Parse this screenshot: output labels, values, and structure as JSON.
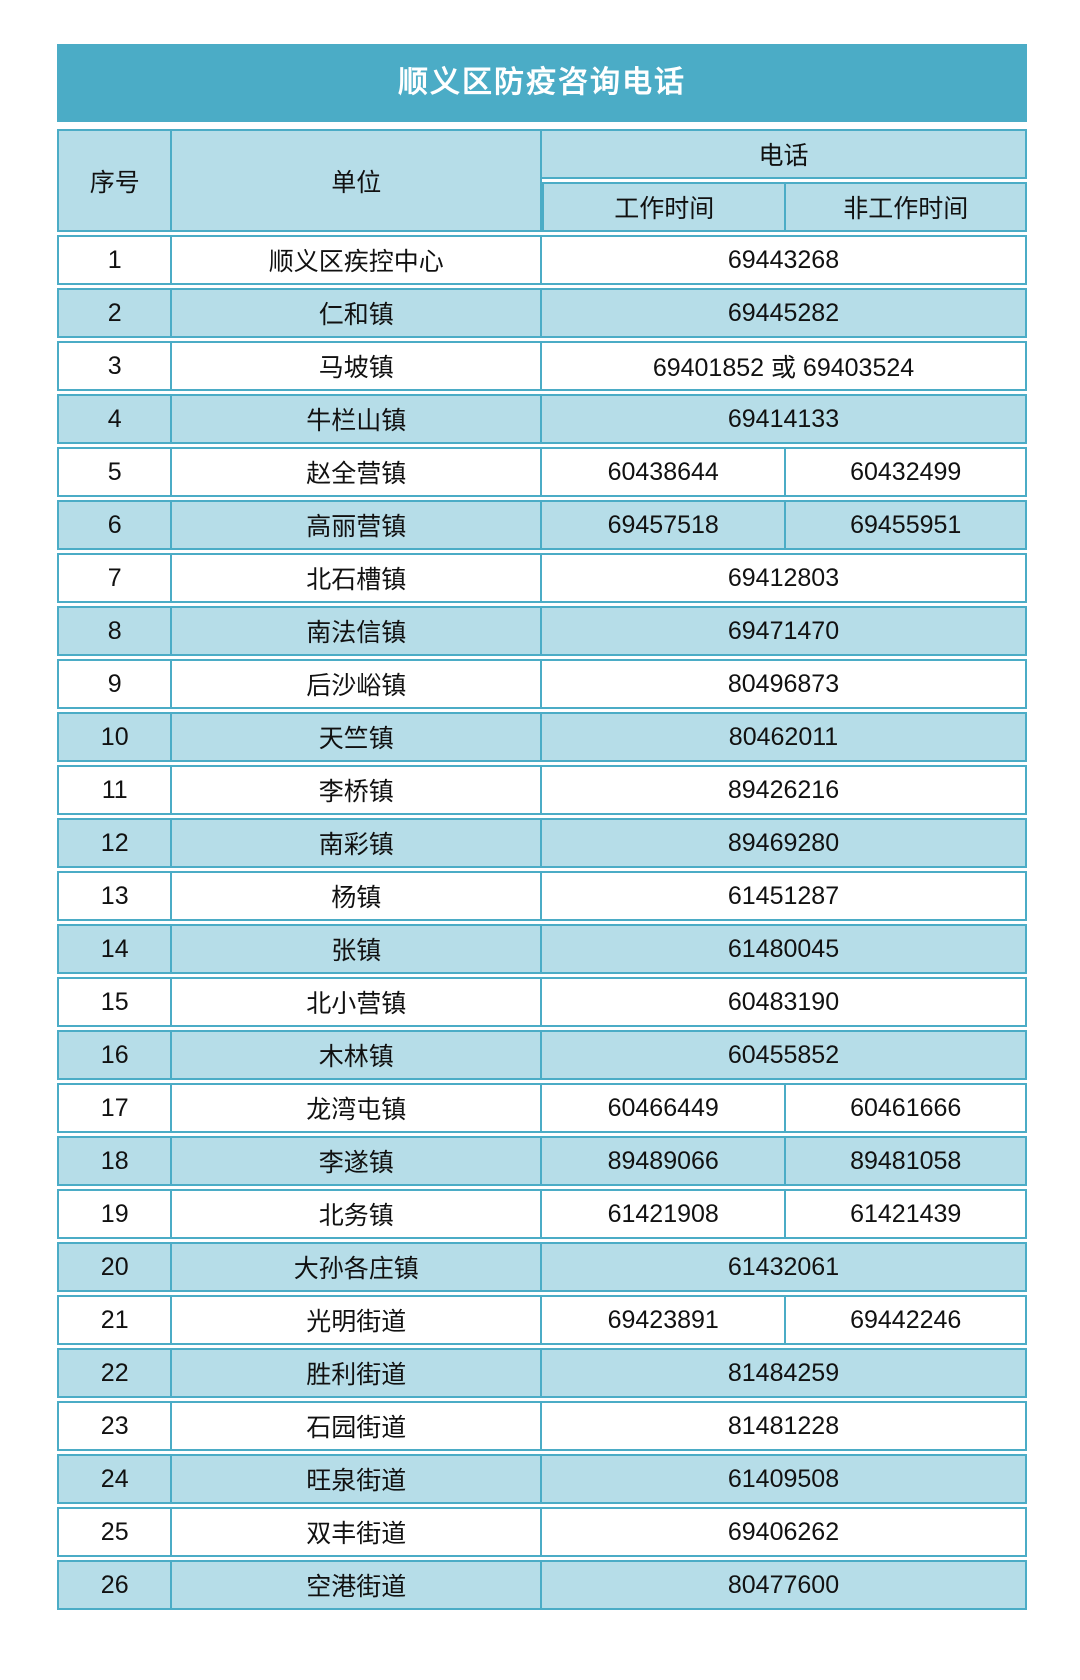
{
  "title": "顺义区防疫咨询电话",
  "colors": {
    "accent_teal": "#4BACC6",
    "light_blue": "#B6DDE8",
    "title_text": "#ffffff",
    "body_text": "#111111"
  },
  "table": {
    "headers": {
      "index": "序号",
      "unit": "单位",
      "phone": "电话",
      "work": "工作时间",
      "offwork": "非工作时间"
    },
    "rows": [
      {
        "no": "1",
        "unit": "顺义区疾控中心",
        "work": "69443268",
        "off": ""
      },
      {
        "no": "2",
        "unit": "仁和镇",
        "work": "69445282",
        "off": ""
      },
      {
        "no": "3",
        "unit": "马坡镇",
        "work": "69401852 或 69403524",
        "off": ""
      },
      {
        "no": "4",
        "unit": "牛栏山镇",
        "work": "69414133",
        "off": ""
      },
      {
        "no": "5",
        "unit": "赵全营镇",
        "work": "60438644",
        "off": "60432499"
      },
      {
        "no": "6",
        "unit": "高丽营镇",
        "work": "69457518",
        "off": "69455951"
      },
      {
        "no": "7",
        "unit": "北石槽镇",
        "work": "69412803",
        "off": ""
      },
      {
        "no": "8",
        "unit": "南法信镇",
        "work": "69471470",
        "off": ""
      },
      {
        "no": "9",
        "unit": "后沙峪镇",
        "work": "80496873",
        "off": ""
      },
      {
        "no": "10",
        "unit": "天竺镇",
        "work": "80462011",
        "off": ""
      },
      {
        "no": "11",
        "unit": "李桥镇",
        "work": "89426216",
        "off": ""
      },
      {
        "no": "12",
        "unit": "南彩镇",
        "work": "89469280",
        "off": ""
      },
      {
        "no": "13",
        "unit": "杨镇",
        "work": "61451287",
        "off": ""
      },
      {
        "no": "14",
        "unit": "张镇",
        "work": "61480045",
        "off": ""
      },
      {
        "no": "15",
        "unit": "北小营镇",
        "work": "60483190",
        "off": ""
      },
      {
        "no": "16",
        "unit": "木林镇",
        "work": "60455852",
        "off": ""
      },
      {
        "no": "17",
        "unit": "龙湾屯镇",
        "work": "60466449",
        "off": "60461666"
      },
      {
        "no": "18",
        "unit": "李遂镇",
        "work": "89489066",
        "off": "89481058"
      },
      {
        "no": "19",
        "unit": "北务镇",
        "work": "61421908",
        "off": "61421439"
      },
      {
        "no": "20",
        "unit": "大孙各庄镇",
        "work": "61432061",
        "off": ""
      },
      {
        "no": "21",
        "unit": "光明街道",
        "work": "69423891",
        "off": "69442246"
      },
      {
        "no": "22",
        "unit": "胜利街道",
        "work": "81484259",
        "off": ""
      },
      {
        "no": "23",
        "unit": "石园街道",
        "work": "81481228",
        "off": ""
      },
      {
        "no": "24",
        "unit": "旺泉街道",
        "work": "61409508",
        "off": ""
      },
      {
        "no": "25",
        "unit": "双丰街道",
        "work": "69406262",
        "off": ""
      },
      {
        "no": "26",
        "unit": "空港街道",
        "work": "80477600",
        "off": ""
      }
    ]
  }
}
